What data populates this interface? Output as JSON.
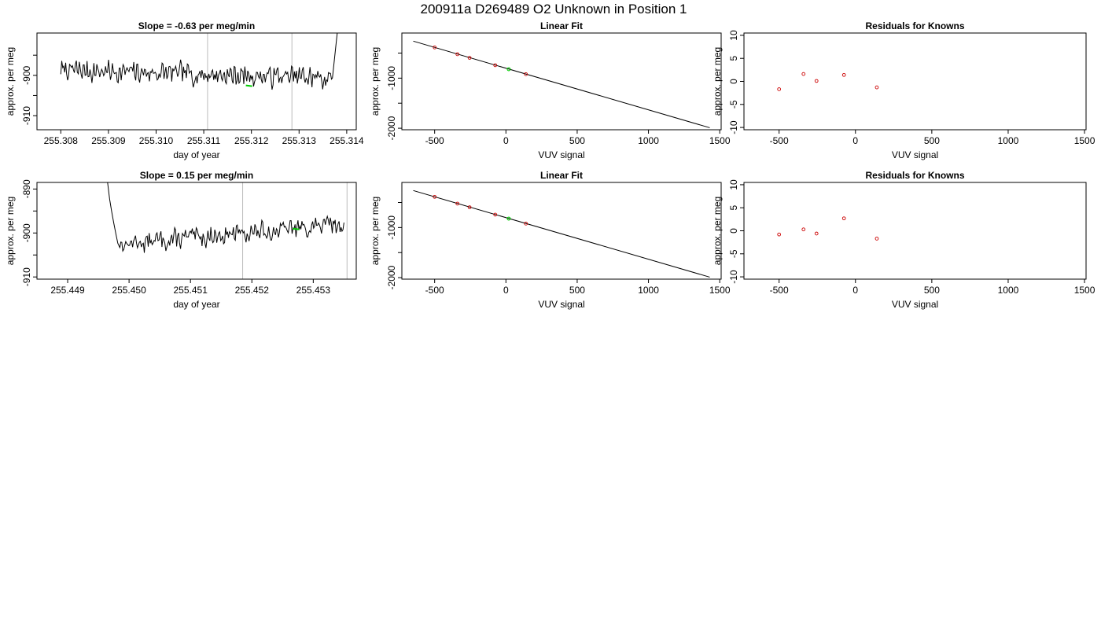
{
  "figure": {
    "title": "200911a      D269489   O2 Unknown in Position  1"
  },
  "colors": {
    "line": "#000000",
    "frame": "#000000",
    "marker_line": "#bbbbbb",
    "known_points": "#cc0000",
    "unknown_point": "#00cc00"
  },
  "chart_data": [
    {
      "id": "trace-row1",
      "type": "line",
      "title": "Slope =  -0.63  per meg/min",
      "xlabel": "day of year",
      "ylabel": "approx. per meg",
      "xlim": [
        255.3075,
        255.3142
      ],
      "ylim": [
        -913.5,
        -889.5
      ],
      "xticks": [
        {
          "v": 255.308,
          "label": "255.308"
        },
        {
          "v": 255.309,
          "label": "255.309"
        },
        {
          "v": 255.31,
          "label": "255.310"
        },
        {
          "v": 255.311,
          "label": "255.311"
        },
        {
          "v": 255.312,
          "label": "255.312"
        },
        {
          "v": 255.313,
          "label": "255.313"
        },
        {
          "v": 255.314,
          "label": "255.314"
        }
      ],
      "yticks": [
        {
          "v": -910,
          "label": "-910"
        },
        {
          "v": -905,
          "label": ""
        },
        {
          "v": -900,
          "label": "-900"
        },
        {
          "v": -895,
          "label": ""
        }
      ],
      "vlines": [
        255.31108,
        255.31285
      ],
      "series_params": {
        "x_start": 255.308,
        "x_end": 255.3137,
        "n": 280,
        "base": -898.7,
        "trend": -2.0,
        "amp": 3.0,
        "seed": 7,
        "rise_start": 255.3137,
        "rise_end": 255.3138,
        "rise_to": -889.5
      },
      "highlight": [
        {
          "x": 255.31195,
          "y": -902.5
        }
      ]
    },
    {
      "id": "fit-row1",
      "type": "scatter",
      "title": "Linear Fit",
      "xlabel": "VUV signal",
      "ylabel": "approx. per meg",
      "xlim": [
        -730,
        1510
      ],
      "ylim": [
        -2030,
        -100
      ],
      "xticks": [
        {
          "v": -500,
          "label": "-500"
        },
        {
          "v": 0,
          "label": "0"
        },
        {
          "v": 500,
          "label": "500"
        },
        {
          "v": 1000,
          "label": "1000"
        },
        {
          "v": 1500,
          "label": "1500"
        }
      ],
      "yticks": [
        {
          "v": -2000,
          "label": "-2000"
        },
        {
          "v": -1500,
          "label": ""
        },
        {
          "v": -1000,
          "label": "-1000"
        },
        {
          "v": -500,
          "label": ""
        }
      ],
      "line": {
        "x": [
          -650,
          1430
        ],
        "y": [
          -262,
          -1990
        ]
      },
      "knowns": [
        {
          "x": -500,
          "y": -387
        },
        {
          "x": -340,
          "y": -523
        },
        {
          "x": -255,
          "y": -595
        },
        {
          "x": -75,
          "y": -742
        },
        {
          "x": 140,
          "y": -921
        }
      ],
      "unknowns": [
        {
          "x": 20,
          "y": -822
        }
      ]
    },
    {
      "id": "resid-row1",
      "type": "scatter",
      "title": "Residuals for Knowns",
      "xlabel": "VUV signal",
      "ylabel": "approx. per meg",
      "xlim": [
        -730,
        1510
      ],
      "ylim": [
        -10.5,
        10.5
      ],
      "xticks": [
        {
          "v": -500,
          "label": "-500"
        },
        {
          "v": 0,
          "label": "0"
        },
        {
          "v": 500,
          "label": "500"
        },
        {
          "v": 1000,
          "label": "1000"
        },
        {
          "v": 1500,
          "label": "1500"
        }
      ],
      "yticks": [
        {
          "v": -10,
          "label": "-10"
        },
        {
          "v": -5,
          "label": "-5"
        },
        {
          "v": 0,
          "label": "0"
        },
        {
          "v": 5,
          "label": "5"
        },
        {
          "v": 10,
          "label": "10"
        }
      ],
      "knowns": [
        {
          "x": -500,
          "y": -1.7
        },
        {
          "x": -340,
          "y": 1.6
        },
        {
          "x": -255,
          "y": 0.1
        },
        {
          "x": -75,
          "y": 1.4
        },
        {
          "x": 140,
          "y": -1.3
        }
      ],
      "unknowns": []
    },
    {
      "id": "trace-row2",
      "type": "line",
      "title": "Slope =  0.15  per meg/min",
      "xlabel": "day of year",
      "ylabel": "approx. per meg",
      "xlim": [
        255.4485,
        255.4537
      ],
      "ylim": [
        -910.5,
        -888.5
      ],
      "xticks": [
        {
          "v": 255.449,
          "label": "255.449"
        },
        {
          "v": 255.45,
          "label": "255.450"
        },
        {
          "v": 255.451,
          "label": "255.451"
        },
        {
          "v": 255.452,
          "label": "255.452"
        },
        {
          "v": 255.453,
          "label": "255.453"
        }
      ],
      "yticks": [
        {
          "v": -910,
          "label": "-910"
        },
        {
          "v": -905,
          "label": ""
        },
        {
          "v": -900,
          "label": "-900"
        },
        {
          "v": -895,
          "label": ""
        },
        {
          "v": -890,
          "label": "-890"
        }
      ],
      "vlines": [
        255.45185,
        255.45355
      ],
      "series_params": {
        "x_start": 255.44985,
        "x_end": 255.4535,
        "n": 230,
        "base": -902.5,
        "trend": 4.5,
        "amp": 2.4,
        "seed": 13,
        "drop_start": 255.44965,
        "drop_from": -888.5
      },
      "highlight": [
        {
          "x": 255.45272,
          "y": -899.0
        }
      ]
    },
    {
      "id": "fit-row2",
      "type": "scatter",
      "title": "Linear Fit",
      "xlabel": "VUV signal",
      "ylabel": "approx. per meg",
      "xlim": [
        -730,
        1510
      ],
      "ylim": [
        -2030,
        -100
      ],
      "xticks": [
        {
          "v": -500,
          "label": "-500"
        },
        {
          "v": 0,
          "label": "0"
        },
        {
          "v": 500,
          "label": "500"
        },
        {
          "v": 1000,
          "label": "1000"
        },
        {
          "v": 1500,
          "label": "1500"
        }
      ],
      "yticks": [
        {
          "v": -2000,
          "label": "-2000"
        },
        {
          "v": -1500,
          "label": ""
        },
        {
          "v": -1000,
          "label": "-1000"
        },
        {
          "v": -500,
          "label": ""
        }
      ],
      "line": {
        "x": [
          -650,
          1430
        ],
        "y": [
          -262,
          -1990
        ]
      },
      "knowns": [
        {
          "x": -500,
          "y": -387
        },
        {
          "x": -340,
          "y": -523
        },
        {
          "x": -255,
          "y": -595
        },
        {
          "x": -75,
          "y": -742
        },
        {
          "x": 140,
          "y": -921
        }
      ],
      "unknowns": [
        {
          "x": 20,
          "y": -822
        }
      ]
    },
    {
      "id": "resid-row2",
      "type": "scatter",
      "title": "Residuals for Knowns",
      "xlabel": "VUV signal",
      "ylabel": "approx. per meg",
      "xlim": [
        -730,
        1510
      ],
      "ylim": [
        -10.5,
        10.5
      ],
      "xticks": [
        {
          "v": -500,
          "label": "-500"
        },
        {
          "v": 0,
          "label": "0"
        },
        {
          "v": 500,
          "label": "500"
        },
        {
          "v": 1000,
          "label": "1000"
        },
        {
          "v": 1500,
          "label": "1500"
        }
      ],
      "yticks": [
        {
          "v": -10,
          "label": "-10"
        },
        {
          "v": -5,
          "label": "-5"
        },
        {
          "v": 0,
          "label": "0"
        },
        {
          "v": 5,
          "label": "5"
        },
        {
          "v": 10,
          "label": "10"
        }
      ],
      "knowns": [
        {
          "x": -500,
          "y": -0.8
        },
        {
          "x": -340,
          "y": 0.3
        },
        {
          "x": -255,
          "y": -0.6
        },
        {
          "x": -75,
          "y": 2.7
        },
        {
          "x": 140,
          "y": -1.7
        }
      ],
      "unknowns": []
    }
  ]
}
